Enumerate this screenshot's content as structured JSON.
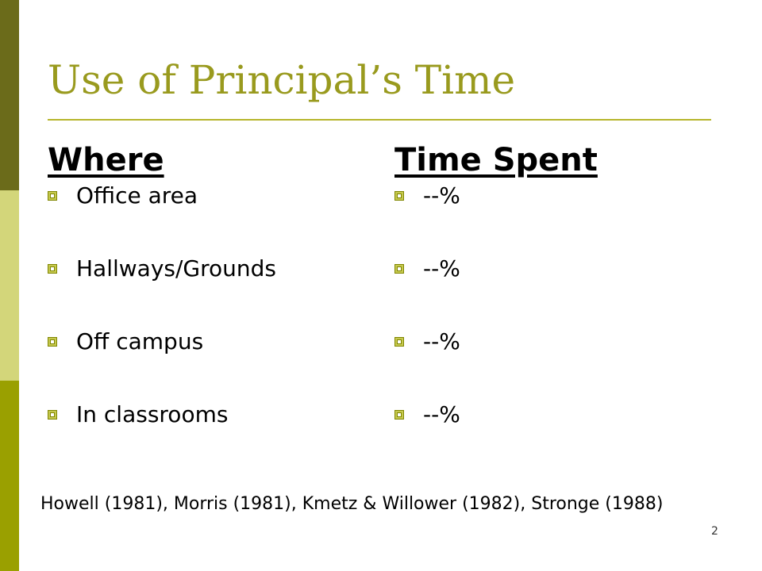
{
  "slide": {
    "title": "Use of Principal’s Time",
    "accent_color": "#999a1e",
    "columns": {
      "where": {
        "header": "Where",
        "items": [
          "Office area",
          "Hallways/Grounds",
          "Off campus",
          "In classrooms"
        ]
      },
      "time_spent": {
        "header": "Time Spent",
        "items": [
          "--%",
          "--%",
          "--%",
          "--%"
        ]
      }
    },
    "citation": "Howell (1981), Morris (1981), Kmetz & Willower (1982), Stronge (1988)",
    "page_number": "2",
    "bullet_icon": "square-bullet-icon"
  }
}
